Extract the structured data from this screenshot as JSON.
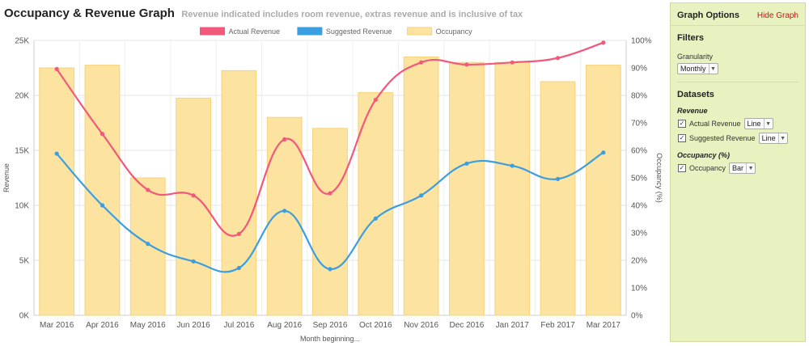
{
  "header": {
    "title": "Occupancy & Revenue Graph",
    "subtitle": "Revenue indicated includes room revenue, extras revenue and is inclusive of tax"
  },
  "panel": {
    "title": "Graph Options",
    "hide_link": "Hide Graph",
    "filters_title": "Filters",
    "granularity_label": "Granularity",
    "granularity_value": "Monthly",
    "datasets_title": "Datasets",
    "revenue_group": "Revenue",
    "occupancy_group": "Occupancy (%)",
    "datasets": [
      {
        "label": "Actual Revenue",
        "type": "Line",
        "checked": true
      },
      {
        "label": "Suggested Revenue",
        "type": "Line",
        "checked": true
      },
      {
        "label": "Occupancy",
        "type": "Bar",
        "checked": true
      }
    ]
  },
  "colors": {
    "actual": "#f2587a",
    "suggested": "#3a9ee0",
    "occupancy_fill": "#fde3a0",
    "occupancy_border": "#f7d27a"
  },
  "chart_data": {
    "type": "bar",
    "categories": [
      "Mar 2016",
      "Apr 2016",
      "May 2016",
      "Jun 2016",
      "Jul 2016",
      "Aug 2016",
      "Sep 2016",
      "Oct 2016",
      "Nov 2016",
      "Dec 2016",
      "Jan 2017",
      "Feb 2017",
      "Mar 2017"
    ],
    "series": [
      {
        "name": "Actual Revenue",
        "type": "line",
        "axis": "left",
        "values": [
          22400,
          16500,
          11400,
          10900,
          7400,
          16000,
          11100,
          19600,
          23000,
          22800,
          23000,
          23400,
          24800
        ]
      },
      {
        "name": "Suggested Revenue",
        "type": "line",
        "axis": "left",
        "values": [
          14700,
          10000,
          6500,
          4900,
          4300,
          9500,
          4200,
          8800,
          10900,
          13800,
          13600,
          12400,
          14800
        ]
      },
      {
        "name": "Occupancy",
        "type": "bar",
        "axis": "right",
        "values": [
          90,
          91,
          50,
          79,
          89,
          72,
          68,
          81,
          94,
          92,
          92,
          85,
          91
        ]
      }
    ],
    "xlabel": "Month beginning...",
    "ylabel": "Revenue",
    "y2label": "Occupancy (%)",
    "ylim": [
      0,
      25000
    ],
    "y2lim": [
      0,
      100
    ],
    "yticks": [
      "0K",
      "5K",
      "10K",
      "15K",
      "20K",
      "25K"
    ],
    "y2ticks": [
      "0%",
      "10%",
      "20%",
      "30%",
      "40%",
      "50%",
      "60%",
      "70%",
      "80%",
      "90%",
      "100%"
    ],
    "legend_position": "top",
    "grid": true
  }
}
